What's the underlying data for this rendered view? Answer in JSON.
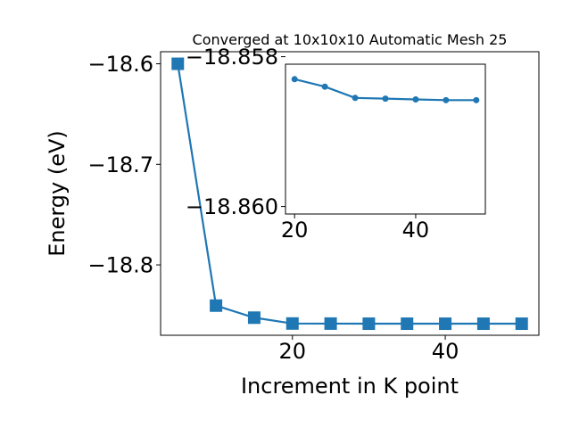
{
  "chart_data": [
    {
      "type": "line",
      "title": "Converged at 10x10x10 Automatic Mesh 25",
      "xlabel": "Increment in K point",
      "ylabel": "Energy (eV)",
      "x": [
        5,
        10,
        15,
        20,
        25,
        30,
        35,
        40,
        45,
        50
      ],
      "series": [
        {
          "values": [
            -18.6,
            -18.8405,
            -18.8525,
            -18.8583,
            -18.8584,
            -18.8585,
            -18.8585,
            -18.8585,
            -18.8585,
            -18.8585
          ]
        }
      ],
      "xlim": [
        2.75,
        52.25
      ],
      "ylim": [
        -18.87,
        -18.588
      ],
      "xticks": [
        20,
        40
      ],
      "xtick_labels": [
        "20",
        "40"
      ],
      "yticks": [
        -18.6,
        -18.7,
        -18.8
      ],
      "ytick_labels": [
        "−18.6",
        "−18.7",
        "−18.8"
      ],
      "marker": "square",
      "color": "#1f77b4",
      "grid": false,
      "legend": "none"
    },
    {
      "type": "line",
      "title": "",
      "xlabel": "",
      "ylabel": "",
      "x": [
        20,
        25,
        30,
        35,
        40,
        45,
        50
      ],
      "series": [
        {
          "values": [
            -18.8583,
            -18.8584,
            -18.85855,
            -18.85856,
            -18.85857,
            -18.85858,
            -18.85858
          ]
        }
      ],
      "xlim": [
        18.5,
        51.5
      ],
      "ylim": [
        -18.8601,
        -18.8581
      ],
      "xticks": [
        20,
        40
      ],
      "xtick_labels": [
        "20",
        "40"
      ],
      "yticks": [
        -18.86,
        -18.858
      ],
      "ytick_labels": [
        "−18.860",
        "−18.858"
      ],
      "marker": "circle",
      "color": "#1f77b4",
      "grid": false,
      "legend": "none"
    }
  ]
}
